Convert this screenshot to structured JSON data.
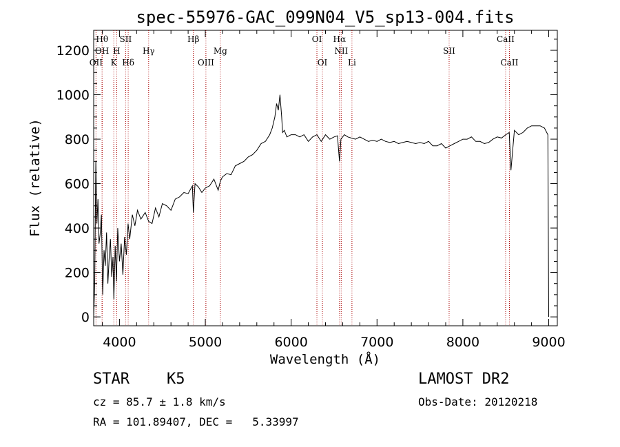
{
  "chart_data": {
    "type": "line",
    "title": "spec-55976-GAC_099N04_V5_sp13-004.fits",
    "xlabel": "Wavelength (Å)",
    "ylabel": "Flux (relative)",
    "xlim": [
      3700,
      9100
    ],
    "ylim": [
      -40,
      1290
    ],
    "xticks": [
      4000,
      5000,
      6000,
      7000,
      8000,
      9000
    ],
    "yticks": [
      0,
      200,
      400,
      600,
      800,
      1000,
      1200
    ],
    "grid": false,
    "series": [
      {
        "x": [
          3700,
          3712,
          3725,
          3738,
          3750,
          3762,
          3775,
          3790,
          3805,
          3820,
          3835,
          3850,
          3865,
          3880,
          3895,
          3910,
          3925,
          3935,
          3950,
          3965,
          3980,
          4000,
          4020,
          4040,
          4060,
          4080,
          4100,
          4120,
          4150,
          4180,
          4210,
          4250,
          4300,
          4340,
          4380,
          4420,
          4460,
          4500,
          4550,
          4600,
          4650,
          4700,
          4750,
          4800,
          4850,
          4861,
          4880,
          4920,
          4960,
          5000,
          5050,
          5100,
          5150,
          5175,
          5200,
          5250,
          5300,
          5350,
          5400,
          5450,
          5500,
          5550,
          5600,
          5650,
          5700,
          5750,
          5780,
          5810,
          5830,
          5850,
          5870,
          5890,
          5900,
          5920,
          5950,
          6000,
          6050,
          6100,
          6150,
          6200,
          6250,
          6300,
          6350,
          6400,
          6450,
          6500,
          6540,
          6563,
          6580,
          6620,
          6660,
          6700,
          6750,
          6800,
          6850,
          6900,
          6950,
          7000,
          7050,
          7100,
          7150,
          7200,
          7250,
          7300,
          7350,
          7400,
          7450,
          7500,
          7550,
          7600,
          7650,
          7700,
          7750,
          7800,
          7850,
          7900,
          7950,
          8000,
          8050,
          8100,
          8150,
          8200,
          8250,
          8300,
          8350,
          8400,
          8450,
          8500,
          8540,
          8560,
          8600,
          8650,
          8700,
          8750,
          8800,
          8850,
          8900,
          8950,
          8990,
          9000
        ],
        "values": [
          0,
          150,
          700,
          420,
          530,
          330,
          370,
          460,
          100,
          300,
          230,
          380,
          150,
          260,
          350,
          180,
          270,
          80,
          320,
          160,
          400,
          250,
          330,
          190,
          360,
          280,
          420,
          350,
          460,
          410,
          480,
          440,
          470,
          430,
          420,
          490,
          450,
          510,
          500,
          480,
          530,
          540,
          560,
          555,
          590,
          470,
          600,
          585,
          560,
          580,
          590,
          620,
          570,
          610,
          630,
          645,
          640,
          680,
          690,
          700,
          720,
          730,
          750,
          780,
          790,
          820,
          850,
          900,
          960,
          930,
          1000,
          900,
          830,
          840,
          810,
          820,
          820,
          810,
          820,
          790,
          810,
          820,
          790,
          820,
          800,
          810,
          815,
          700,
          800,
          820,
          810,
          805,
          800,
          810,
          800,
          790,
          795,
          790,
          800,
          790,
          785,
          790,
          780,
          785,
          790,
          785,
          780,
          785,
          780,
          790,
          770,
          770,
          780,
          760,
          770,
          780,
          790,
          800,
          800,
          810,
          790,
          790,
          780,
          785,
          800,
          810,
          805,
          820,
          830,
          660,
          840,
          820,
          830,
          850,
          860,
          860,
          860,
          850,
          820,
          0
        ]
      }
    ],
    "lines": [
      {
        "name": "Hθ",
        "x": 3798,
        "row": 0
      },
      {
        "name": "OH",
        "x": 3798,
        "row": 1
      },
      {
        "name": "OII",
        "x": 3727,
        "row": 2
      },
      {
        "name": "H",
        "x": 3968,
        "row": 1
      },
      {
        "name": "K",
        "x": 3934,
        "row": 2
      },
      {
        "name": "SII",
        "x": 4072,
        "row": 0
      },
      {
        "name": "Hδ",
        "x": 4102,
        "row": 2
      },
      {
        "name": "Hγ",
        "x": 4340,
        "row": 1
      },
      {
        "name": "Hβ",
        "x": 4861,
        "row": 0
      },
      {
        "name": "OIII",
        "x": 5007,
        "row": 2
      },
      {
        "name": "Mg",
        "x": 5175,
        "row": 1
      },
      {
        "name": "OI",
        "x": 6300,
        "row": 0
      },
      {
        "name": "OI",
        "x": 6364,
        "row": 2
      },
      {
        "name": "Hα",
        "x": 6563,
        "row": 0
      },
      {
        "name": "NII",
        "x": 6583,
        "row": 1
      },
      {
        "name": "Li",
        "x": 6708,
        "row": 2
      },
      {
        "name": "SII",
        "x": 7840,
        "row": 1
      },
      {
        "name": "CaII",
        "x": 8498,
        "row": 0
      },
      {
        "name": "CaII",
        "x": 8542,
        "row": 2
      }
    ]
  },
  "footer": {
    "class": "STAR",
    "subclass": "K5",
    "survey": "LAMOST DR2",
    "cz": "cz = 85.7 ± 1.8 km/s",
    "obs_date": "Obs-Date: 20120218",
    "radec": "RA = 101.89407, DEC =   5.33997"
  },
  "colors": {
    "spectrum": "#000000",
    "line_markers": "#aa0000"
  }
}
